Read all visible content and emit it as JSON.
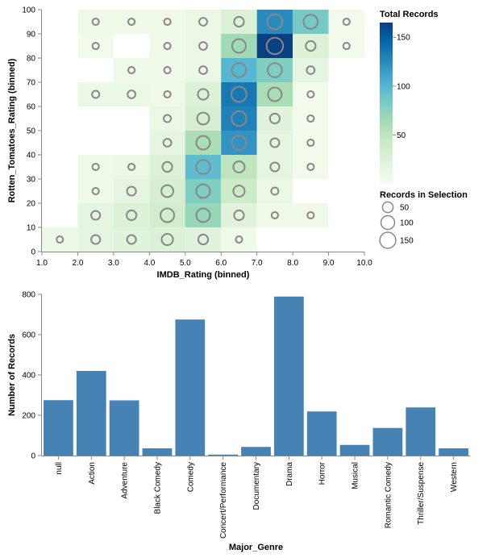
{
  "chart_data": [
    {
      "type": "heatmap",
      "xlabel": "IMDB_Rating (binned)",
      "ylabel": "Rotten_Tomatoes_Rating (binned)",
      "xlim": [
        1,
        10
      ],
      "ylim": [
        0,
        100
      ],
      "x_bin_step": 1,
      "y_bin_step": 10,
      "x_ticks": [
        "1.0",
        "2.0",
        "3.0",
        "4.0",
        "5.0",
        "6.0",
        "7.0",
        "8.0",
        "9.0",
        "10.0"
      ],
      "y_ticks": [
        "0",
        "10",
        "20",
        "30",
        "40",
        "50",
        "60",
        "70",
        "80",
        "90",
        "100"
      ],
      "color_scheme": [
        "#f7fcf0",
        "#e0f3db",
        "#ccebc5",
        "#a8ddb5",
        "#7bccc4",
        "#4eb3d3",
        "#2b8cbe",
        "#0868ac",
        "#084081"
      ],
      "circle_stroke_color": "#888888",
      "cells": [
        {
          "x": 1,
          "y": 0,
          "count": 10,
          "sel": 10
        },
        {
          "x": 2,
          "y": 0,
          "count": 15,
          "sel": 30
        },
        {
          "x": 3,
          "y": 0,
          "count": 20,
          "sel": 30
        },
        {
          "x": 4,
          "y": 0,
          "count": 25,
          "sel": 60
        },
        {
          "x": 5,
          "y": 0,
          "count": 20,
          "sel": 40
        },
        {
          "x": 6,
          "y": 0,
          "count": 8,
          "sel": 10
        },
        {
          "x": 2,
          "y": 10,
          "count": 15,
          "sel": 30
        },
        {
          "x": 3,
          "y": 10,
          "count": 25,
          "sel": 40
        },
        {
          "x": 4,
          "y": 10,
          "count": 35,
          "sel": 100
        },
        {
          "x": 5,
          "y": 10,
          "count": 70,
          "sel": 100
        },
        {
          "x": 6,
          "y": 10,
          "count": 20,
          "sel": 40
        },
        {
          "x": 7,
          "y": 10,
          "count": 8,
          "sel": 10
        },
        {
          "x": 8,
          "y": 10,
          "count": 8,
          "sel": 10
        },
        {
          "x": 2,
          "y": 20,
          "count": 8,
          "sel": 10
        },
        {
          "x": 3,
          "y": 20,
          "count": 15,
          "sel": 30
        },
        {
          "x": 4,
          "y": 20,
          "count": 30,
          "sel": 70
        },
        {
          "x": 5,
          "y": 20,
          "count": 80,
          "sel": 100
        },
        {
          "x": 6,
          "y": 20,
          "count": 40,
          "sel": 60
        },
        {
          "x": 7,
          "y": 20,
          "count": 10,
          "sel": 15
        },
        {
          "x": 2,
          "y": 30,
          "count": 8,
          "sel": 10
        },
        {
          "x": 3,
          "y": 30,
          "count": 10,
          "sel": 10
        },
        {
          "x": 4,
          "y": 30,
          "count": 25,
          "sel": 40
        },
        {
          "x": 5,
          "y": 30,
          "count": 95,
          "sel": 110
        },
        {
          "x": 6,
          "y": 30,
          "count": 50,
          "sel": 60
        },
        {
          "x": 7,
          "y": 30,
          "count": 15,
          "sel": 30
        },
        {
          "x": 8,
          "y": 30,
          "count": 5,
          "sel": 10
        },
        {
          "x": 4,
          "y": 40,
          "count": 15,
          "sel": 20
        },
        {
          "x": 5,
          "y": 40,
          "count": 60,
          "sel": 100
        },
        {
          "x": 6,
          "y": 40,
          "count": 120,
          "sel": 110
        },
        {
          "x": 7,
          "y": 40,
          "count": 15,
          "sel": 30
        },
        {
          "x": 8,
          "y": 40,
          "count": 5,
          "sel": 10
        },
        {
          "x": 4,
          "y": 50,
          "count": 10,
          "sel": 15
        },
        {
          "x": 5,
          "y": 50,
          "count": 30,
          "sel": 70
        },
        {
          "x": 6,
          "y": 50,
          "count": 130,
          "sel": 120
        },
        {
          "x": 7,
          "y": 50,
          "count": 20,
          "sel": 40
        },
        {
          "x": 8,
          "y": 50,
          "count": 5,
          "sel": 10
        },
        {
          "x": 2,
          "y": 60,
          "count": 10,
          "sel": 15
        },
        {
          "x": 3,
          "y": 60,
          "count": 10,
          "sel": 20
        },
        {
          "x": 4,
          "y": 60,
          "count": 8,
          "sel": 10
        },
        {
          "x": 5,
          "y": 60,
          "count": 25,
          "sel": 50
        },
        {
          "x": 6,
          "y": 60,
          "count": 135,
          "sel": 130
        },
        {
          "x": 7,
          "y": 60,
          "count": 60,
          "sel": 100
        },
        {
          "x": 8,
          "y": 60,
          "count": 5,
          "sel": 10
        },
        {
          "x": 3,
          "y": 70,
          "count": 8,
          "sel": 10
        },
        {
          "x": 4,
          "y": 70,
          "count": 8,
          "sel": 10
        },
        {
          "x": 5,
          "y": 70,
          "count": 10,
          "sel": 20
        },
        {
          "x": 6,
          "y": 70,
          "count": 100,
          "sel": 110
        },
        {
          "x": 7,
          "y": 70,
          "count": 80,
          "sel": 110
        },
        {
          "x": 8,
          "y": 70,
          "count": 15,
          "sel": 20
        },
        {
          "x": 2,
          "y": 80,
          "count": 5,
          "sel": 10
        },
        {
          "x": 4,
          "y": 80,
          "count": 8,
          "sel": 10
        },
        {
          "x": 5,
          "y": 80,
          "count": 10,
          "sel": 20
        },
        {
          "x": 6,
          "y": 80,
          "count": 65,
          "sel": 100
        },
        {
          "x": 7,
          "y": 80,
          "count": 165,
          "sel": 160
        },
        {
          "x": 8,
          "y": 80,
          "count": 25,
          "sel": 40
        },
        {
          "x": 9,
          "y": 80,
          "count": 5,
          "sel": 10
        },
        {
          "x": 2,
          "y": 90,
          "count": 8,
          "sel": 10
        },
        {
          "x": 3,
          "y": 90,
          "count": 8,
          "sel": 10
        },
        {
          "x": 4,
          "y": 90,
          "count": 8,
          "sel": 10
        },
        {
          "x": 5,
          "y": 90,
          "count": 10,
          "sel": 20
        },
        {
          "x": 6,
          "y": 90,
          "count": 25,
          "sel": 40
        },
        {
          "x": 7,
          "y": 90,
          "count": 125,
          "sel": 130
        },
        {
          "x": 8,
          "y": 90,
          "count": 85,
          "sel": 110
        },
        {
          "x": 9,
          "y": 90,
          "count": 5,
          "sel": 10
        }
      ],
      "legend_color": {
        "title": "Total Records",
        "domain": [
          0,
          165
        ],
        "ticks": [
          {
            "value": 50,
            "label": "50"
          },
          {
            "value": 100,
            "label": "100"
          },
          {
            "value": 150,
            "label": "150"
          }
        ],
        "placement": "right"
      },
      "legend_size": {
        "title": "Records in Selection",
        "domain": [
          0,
          160
        ],
        "entries": [
          {
            "value": 50,
            "label": "50"
          },
          {
            "value": 100,
            "label": "100"
          },
          {
            "value": 150,
            "label": "150"
          }
        ],
        "placement": "right"
      }
    },
    {
      "type": "bar",
      "xlabel": "Major_Genre",
      "ylabel": "Number of Records",
      "ylim": [
        0,
        800
      ],
      "y_ticks": [
        0,
        200,
        400,
        600,
        800
      ],
      "bar_color": "#4682b4",
      "categories": [
        "null",
        "Action",
        "Adventure",
        "Black Comedy",
        "Comedy",
        "Concert/Performance",
        "Documentary",
        "Drama",
        "Horror",
        "Musical",
        "Romantic Comedy",
        "Thriller/Suspense",
        "Western"
      ],
      "values": [
        275,
        420,
        274,
        36,
        675,
        5,
        43,
        789,
        219,
        53,
        137,
        239,
        36
      ]
    }
  ]
}
